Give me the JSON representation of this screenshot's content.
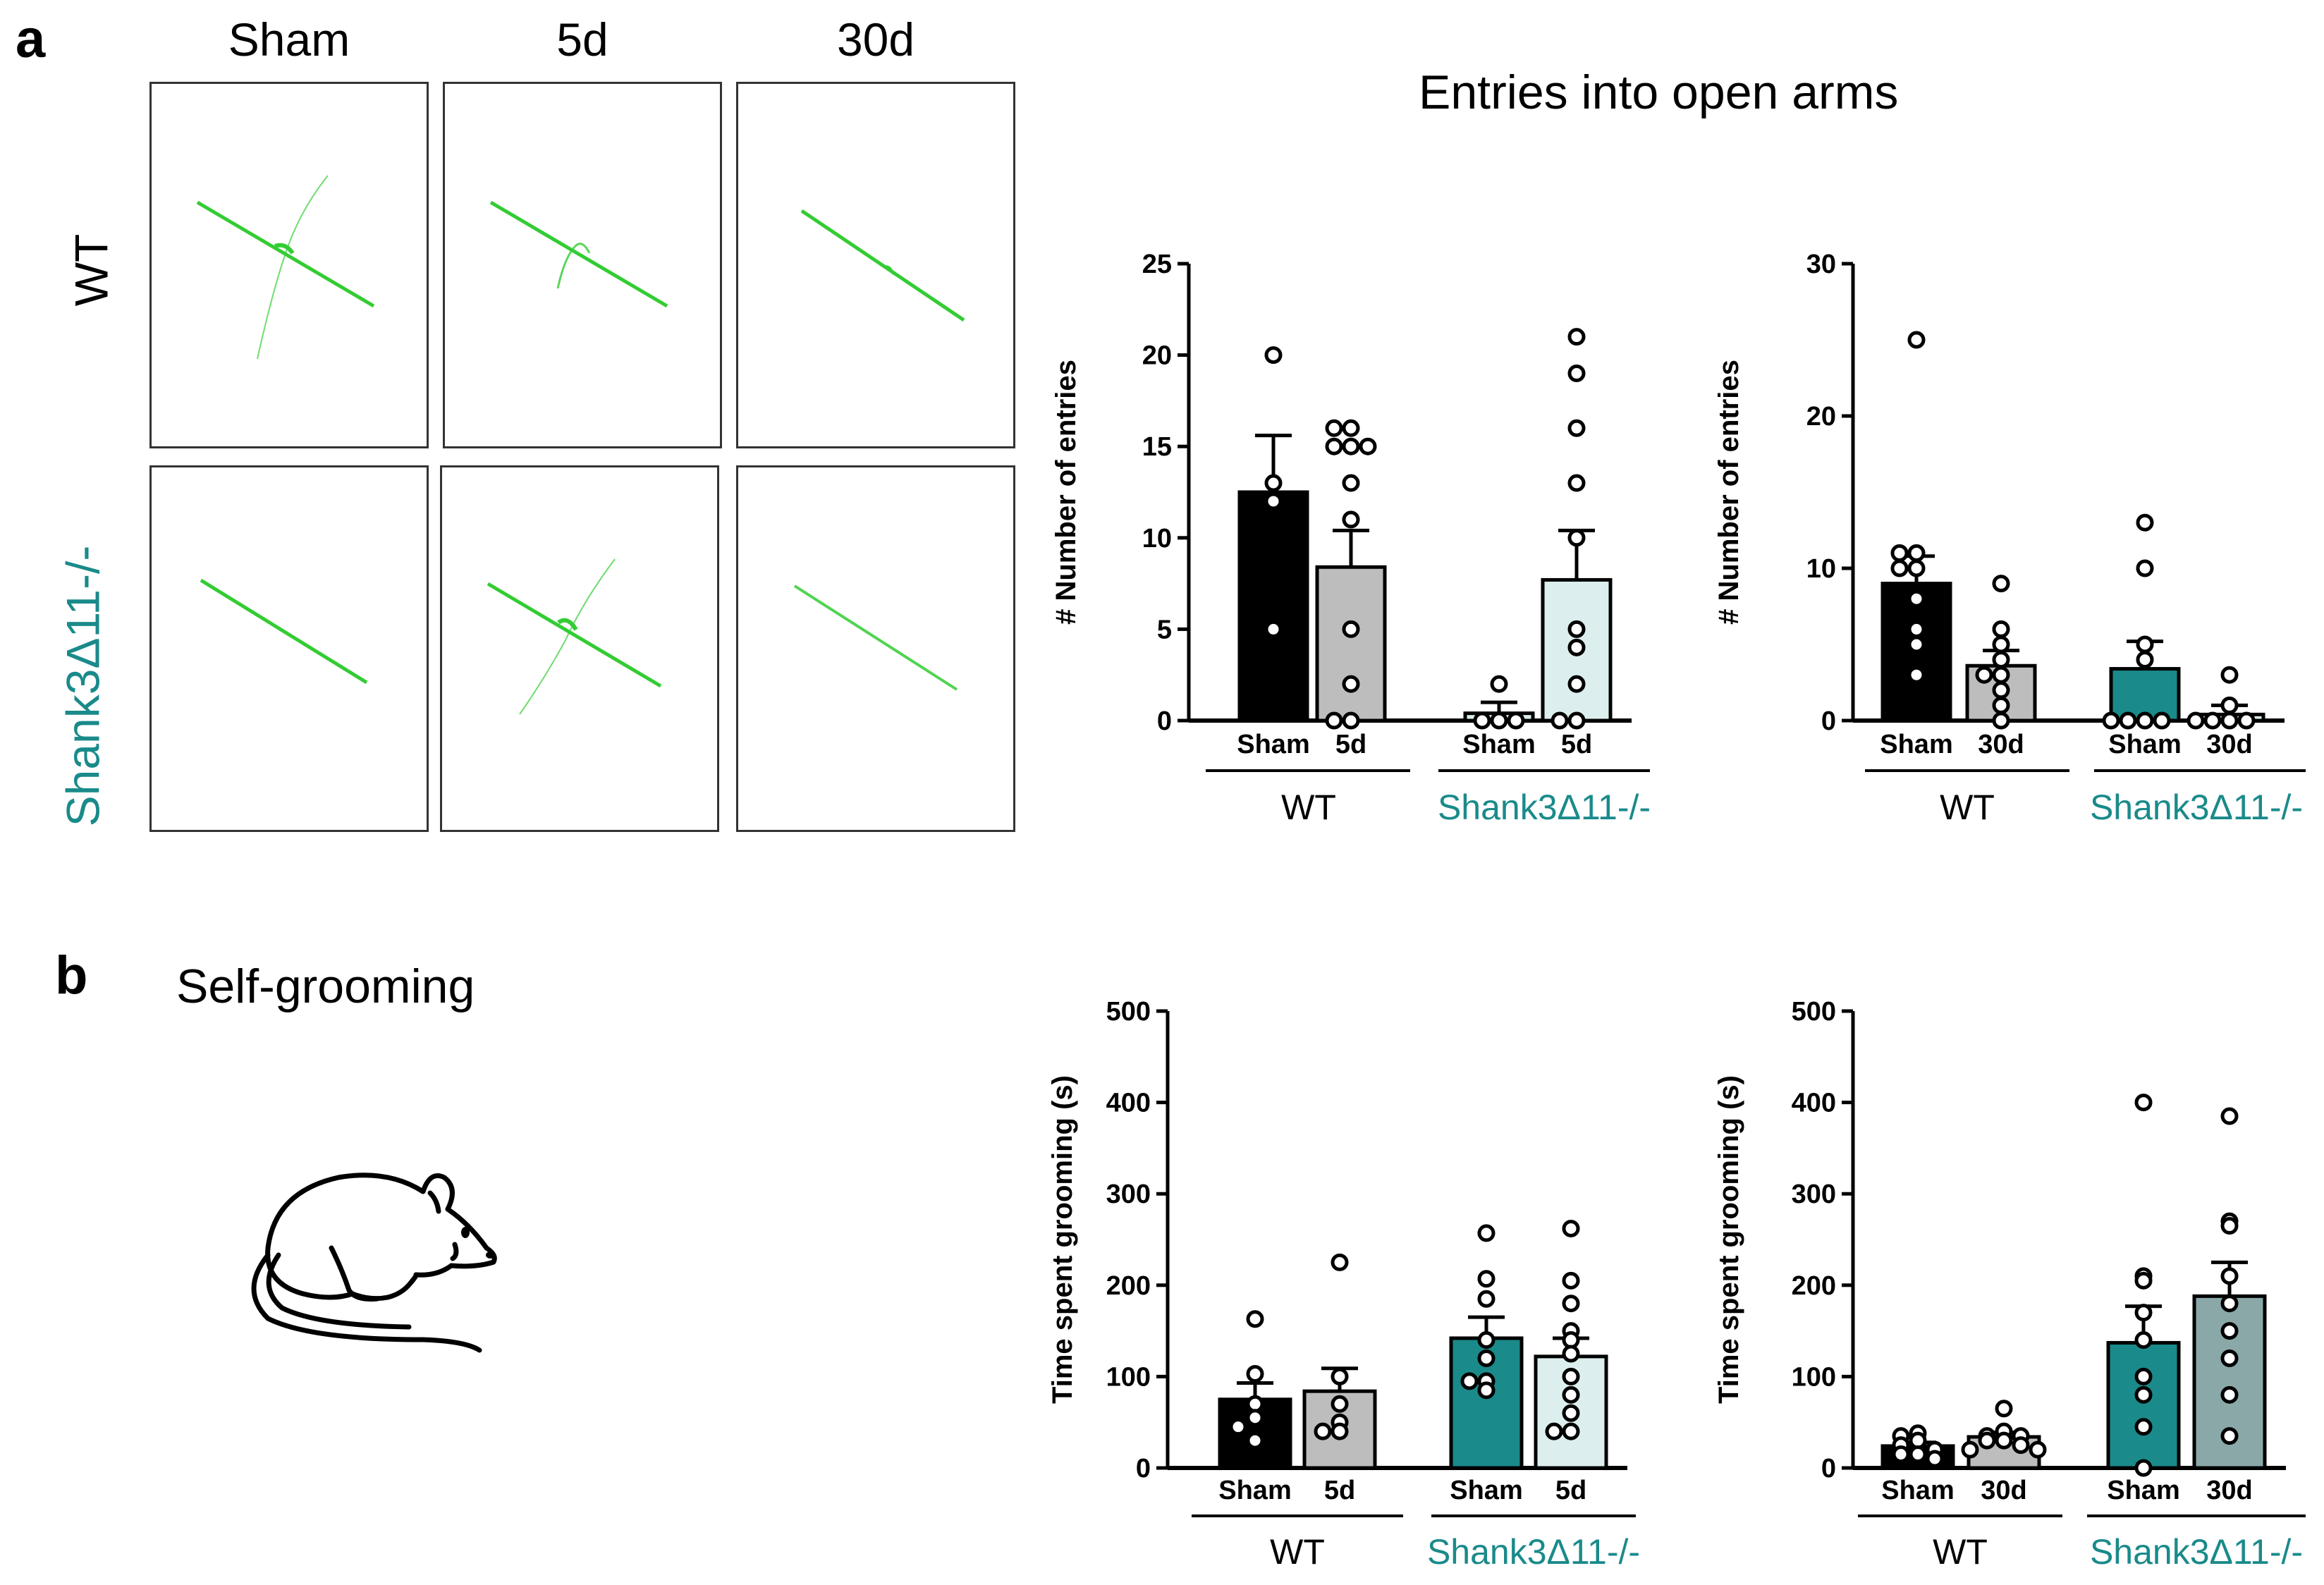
{
  "panel_a": {
    "letter": "a",
    "columns": [
      "Sham",
      "5d",
      "30d"
    ],
    "rows": [
      "WT",
      "Shank3Δ11-/-"
    ],
    "title": "Entries into open arms"
  },
  "panel_b": {
    "letter": "b",
    "title": "Self-grooming"
  },
  "colors": {
    "black": "#000000",
    "gray": "#bdbdbd",
    "teal": "#1a8a8a",
    "light_teal": "#dcefee",
    "track": "#2ecc2e",
    "teal_text": "#1a8a8a"
  },
  "chart_data": [
    {
      "id": "chart-a-5d",
      "type": "bar",
      "ylabel": "# Number of entries",
      "ylim": [
        0,
        25
      ],
      "yticks": [
        0,
        5,
        10,
        15,
        20,
        25
      ],
      "groups": [
        "WT",
        "Shank3Δ11-/-"
      ],
      "categories": [
        "Sham",
        "5d",
        "Sham",
        "5d"
      ],
      "series": [
        {
          "name": "WT Sham",
          "group": "WT",
          "value": 12.5,
          "sem": 3.1,
          "fill": "black",
          "points": [
            20,
            13,
            12,
            5
          ]
        },
        {
          "name": "WT 5d",
          "group": "WT",
          "value": 8.4,
          "sem": 2.0,
          "fill": "gray",
          "points": [
            16,
            16,
            15,
            15,
            15,
            13,
            11,
            5,
            2,
            0,
            0
          ]
        },
        {
          "name": "Shank3 Sham",
          "group": "Shank3Δ11-/-",
          "value": 0.4,
          "sem": 0.6,
          "fill": "light_teal",
          "points": [
            2,
            0,
            0,
            0
          ]
        },
        {
          "name": "Shank3 5d",
          "group": "Shank3Δ11-/-",
          "value": 7.7,
          "sem": 2.7,
          "fill": "light_teal",
          "points": [
            21,
            19,
            16,
            13,
            10,
            5,
            4,
            2,
            0,
            0
          ]
        }
      ]
    },
    {
      "id": "chart-a-30d",
      "type": "bar",
      "ylabel": "# Number of entries",
      "ylim": [
        0,
        30
      ],
      "yticks": [
        0,
        10,
        20,
        30
      ],
      "groups": [
        "WT",
        "Shank3Δ11-/-"
      ],
      "categories": [
        "Sham",
        "30d",
        "Sham",
        "30d"
      ],
      "series": [
        {
          "name": "WT Sham",
          "group": "WT",
          "value": 9.0,
          "sem": 1.8,
          "fill": "black",
          "points": [
            25,
            11,
            11,
            10,
            10,
            8,
            6,
            5,
            3
          ]
        },
        {
          "name": "WT 30d",
          "group": "WT",
          "value": 3.6,
          "sem": 1.0,
          "fill": "gray",
          "points": [
            9,
            6,
            5,
            4,
            3,
            3,
            2,
            1,
            0
          ]
        },
        {
          "name": "Shank3 Sham",
          "group": "Shank3Δ11-/-",
          "value": 3.4,
          "sem": 1.8,
          "fill": "teal",
          "points": [
            13,
            10,
            5,
            4,
            0,
            0,
            0,
            0
          ]
        },
        {
          "name": "Shank3 30d",
          "group": "Shank3Δ11-/-",
          "value": 0.4,
          "sem": 0.6,
          "fill": "light_teal",
          "points": [
            3,
            1,
            0,
            0,
            0,
            0
          ]
        }
      ]
    },
    {
      "id": "chart-b-5d",
      "type": "bar",
      "ylabel": "Time spent grooming (s)",
      "ylim": [
        0,
        500
      ],
      "yticks": [
        0,
        100,
        200,
        300,
        400,
        500
      ],
      "groups": [
        "WT",
        "Shank3Δ11-/-"
      ],
      "categories": [
        "Sham",
        "5d",
        "Sham",
        "5d"
      ],
      "series": [
        {
          "name": "WT Sham",
          "group": "WT",
          "value": 75,
          "sem": 18,
          "fill": "black",
          "points": [
            163,
            103,
            70,
            55,
            45,
            30
          ]
        },
        {
          "name": "WT 5d",
          "group": "WT",
          "value": 84,
          "sem": 25,
          "fill": "gray",
          "points": [
            225,
            100,
            70,
            50,
            40,
            40
          ]
        },
        {
          "name": "Shank3 Sham",
          "group": "Shank3Δ11-/-",
          "value": 142,
          "sem": 23,
          "fill": "teal",
          "points": [
            257,
            207,
            185,
            140,
            120,
            95,
            95,
            85
          ]
        },
        {
          "name": "Shank3 5d",
          "group": "Shank3Δ11-/-",
          "value": 122,
          "sem": 20,
          "fill": "light_teal",
          "points": [
            262,
            205,
            180,
            150,
            140,
            125,
            100,
            80,
            60,
            40,
            40
          ]
        }
      ]
    },
    {
      "id": "chart-b-30d",
      "type": "bar",
      "ylabel": "Time spent grooming (s)",
      "ylim": [
        0,
        500
      ],
      "yticks": [
        0,
        100,
        200,
        300,
        400,
        500
      ],
      "groups": [
        "WT",
        "Shank3Δ11-/-"
      ],
      "categories": [
        "Sham",
        "30d",
        "Sham",
        "30d"
      ],
      "series": [
        {
          "name": "WT Sham",
          "group": "WT",
          "value": 24,
          "sem": 4,
          "fill": "black",
          "points": [
            38,
            35,
            30,
            25,
            20,
            15,
            15,
            10
          ]
        },
        {
          "name": "WT 30d",
          "group": "WT",
          "value": 34,
          "sem": 5,
          "fill": "gray",
          "points": [
            65,
            40,
            35,
            35,
            30,
            30,
            25,
            20,
            20
          ]
        },
        {
          "name": "Shank3 Sham",
          "group": "Shank3Δ11-/-",
          "value": 137,
          "sem": 40,
          "fill": "teal",
          "points": [
            400,
            210,
            205,
            170,
            140,
            100,
            80,
            45,
            0
          ]
        },
        {
          "name": "Shank3 30d",
          "group": "Shank3Δ11-/-",
          "value": 188,
          "sem": 37,
          "fill": "gray_teal",
          "points": [
            385,
            270,
            265,
            210,
            180,
            150,
            120,
            80,
            35
          ]
        }
      ]
    }
  ]
}
